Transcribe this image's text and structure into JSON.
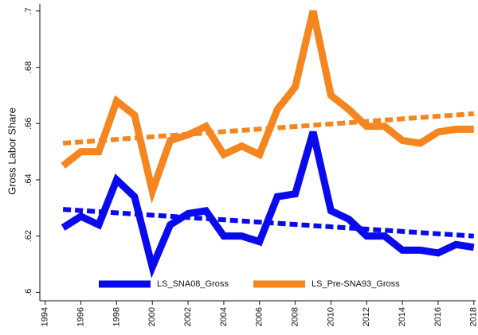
{
  "chart_data": {
    "type": "line",
    "y_label": "Gross Labor Share",
    "x": [
      1995,
      1996,
      1997,
      1998,
      1999,
      2000,
      2001,
      2002,
      2003,
      2004,
      2005,
      2006,
      2007,
      2008,
      2009,
      2010,
      2011,
      2012,
      2013,
      2014,
      2015,
      2016,
      2017,
      2018
    ],
    "trend_x": [
      1995,
      2018
    ],
    "series": [
      {
        "name": "LS_SNA08_Gross",
        "color": "#0a0aef",
        "values": [
          0.623,
          0.627,
          0.624,
          0.64,
          0.634,
          0.609,
          0.624,
          0.628,
          0.629,
          0.62,
          0.62,
          0.618,
          0.634,
          0.635,
          0.657,
          0.629,
          0.626,
          0.62,
          0.62,
          0.615,
          0.615,
          0.614,
          0.617,
          0.616
        ],
        "trend": [
          0.6295,
          0.62
        ]
      },
      {
        "name": "LS_Pre-SNA93_Gross",
        "color": "#f5861f",
        "values": [
          0.645,
          0.65,
          0.65,
          0.668,
          0.663,
          0.636,
          0.654,
          0.656,
          0.659,
          0.649,
          0.652,
          0.649,
          0.665,
          0.673,
          0.7,
          0.67,
          0.665,
          0.659,
          0.659,
          0.654,
          0.653,
          0.657,
          0.658,
          0.658
        ],
        "trend": [
          0.653,
          0.6635
        ]
      }
    ],
    "xlim": [
      1993.7,
      2018.1
    ],
    "ylim": [
      0.597,
      0.7025
    ],
    "xticks": [
      1994,
      1996,
      1998,
      2000,
      2002,
      2004,
      2006,
      2008,
      2010,
      2012,
      2014,
      2016,
      2018
    ],
    "yticks": [
      {
        "value": 0.6,
        "label": ".6"
      },
      {
        "value": 0.62,
        "label": ".62"
      },
      {
        "value": 0.64,
        "label": ".64"
      },
      {
        "value": 0.66,
        "label": ".66"
      },
      {
        "value": 0.68,
        "label": ".68"
      },
      {
        "value": 0.7,
        "label": ".7"
      }
    ],
    "grid": false,
    "legend": "bottom"
  }
}
